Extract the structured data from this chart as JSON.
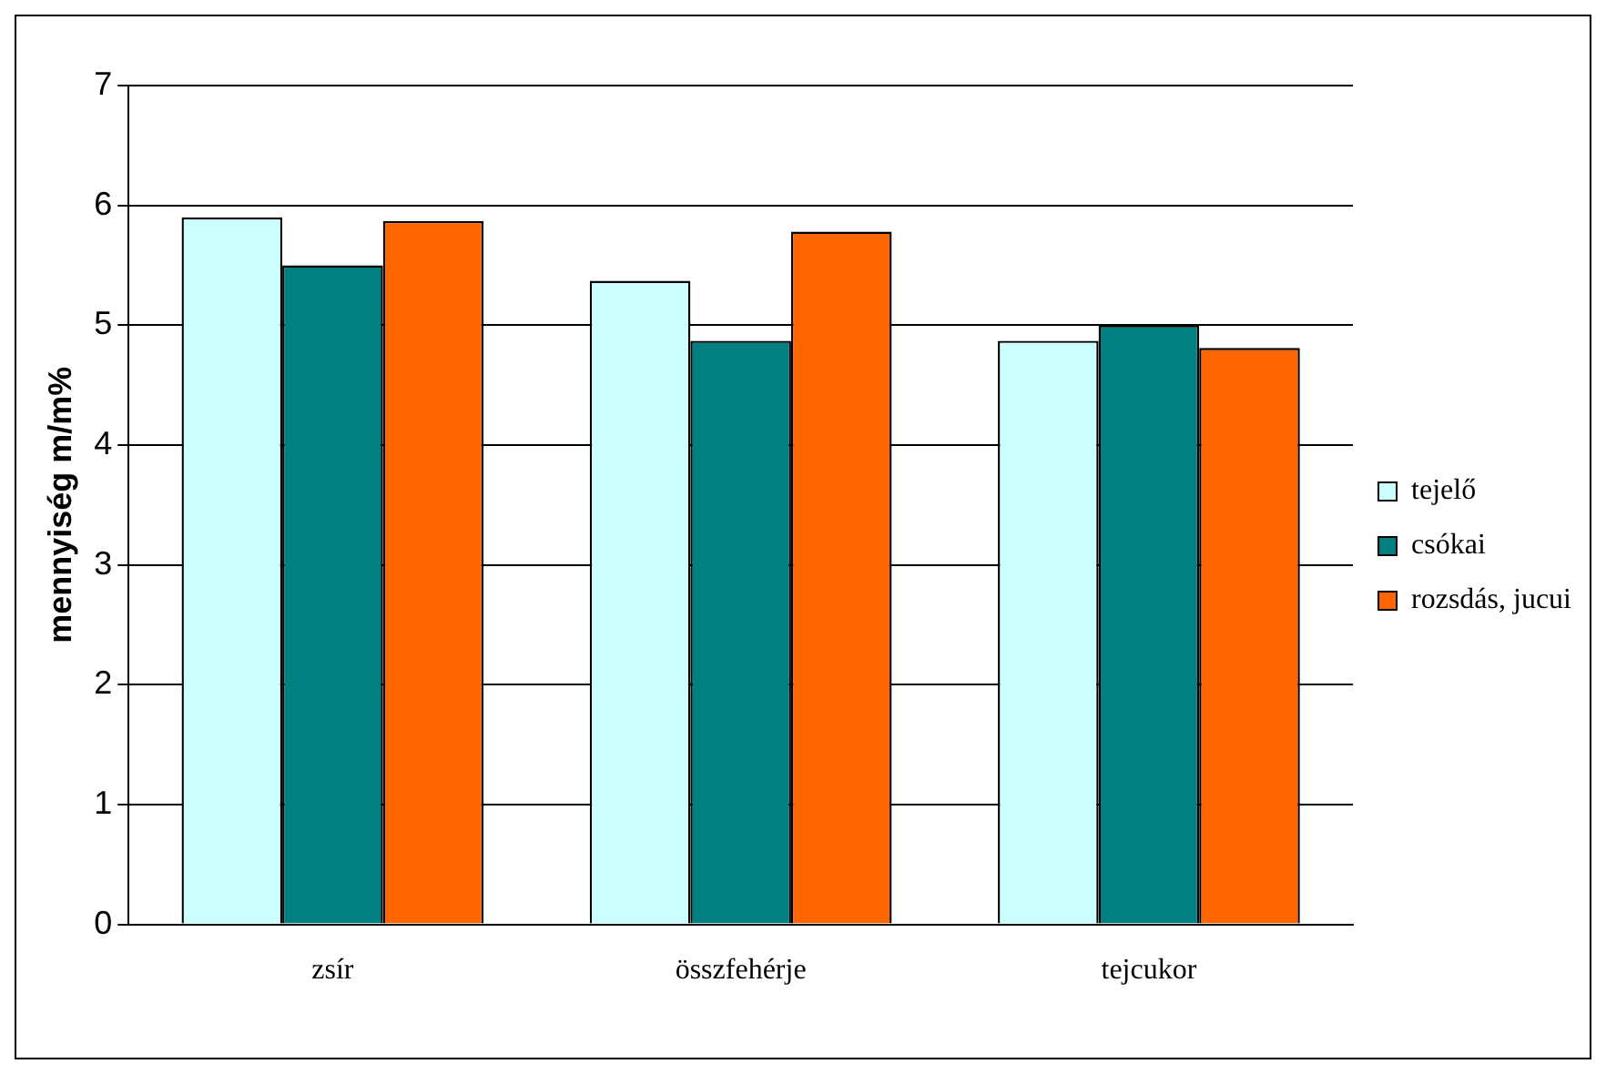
{
  "chart_data": {
    "type": "bar",
    "ylabel": "mennyiség m/m%",
    "categories": [
      "zsír",
      "összfehérje",
      "tejcukor"
    ],
    "series": [
      {
        "name": "tejelő",
        "color": "#ccffff",
        "values": [
          5.9,
          5.37,
          4.87
        ]
      },
      {
        "name": "csókai",
        "color": "#008080",
        "values": [
          5.5,
          4.87,
          5.0
        ]
      },
      {
        "name": "rozsdás, jucui",
        "color": "#ff6600",
        "values": [
          5.87,
          5.78,
          4.81
        ]
      }
    ],
    "ylim": [
      0,
      7
    ],
    "yticks": [
      0,
      1,
      2,
      3,
      4,
      5,
      6,
      7
    ],
    "grid": "y",
    "legend": "right"
  }
}
